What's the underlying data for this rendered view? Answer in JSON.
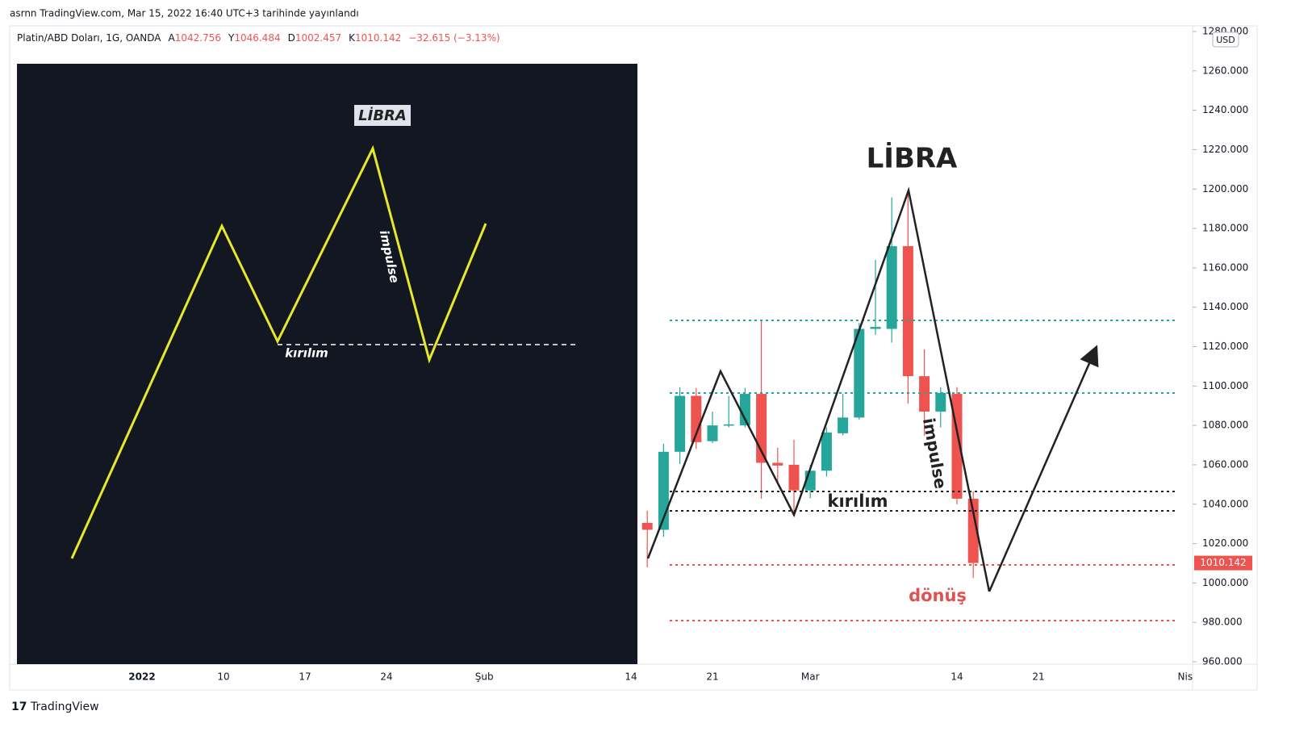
{
  "caption": "asrnn TradingView.com, Mar 15, 2022 16:40 UTC+3 tarihinde yayınlandı",
  "footer": "TradingView",
  "inset": {
    "title": "LİBRA",
    "impulse": "impulse",
    "breakout": "kırılım"
  },
  "annotations": {
    "title": "LİBRA",
    "impulse": "impulse",
    "breakout": "kırılım",
    "reversal": "dönüş"
  },
  "chart_data": {
    "type": "candlestick",
    "symbol": "Platin/ABD Doları, 1G, OANDA",
    "ohlc_labels": [
      {
        "key": "A",
        "text": "1042.756"
      },
      {
        "key": "Y",
        "text": "1046.484"
      },
      {
        "key": "D",
        "text": "1002.457"
      },
      {
        "key": "K",
        "text": "1010.142"
      }
    ],
    "change": "−32.615 (−3.13%)",
    "currency": "USD",
    "up_color": "#26a69a",
    "down_color": "#ef5350",
    "categories": [
      "2022",
      null,
      null,
      null,
      null,
      "10",
      null,
      null,
      null,
      null,
      "17",
      null,
      null,
      null,
      null,
      "24",
      null,
      null,
      null,
      null,
      null,
      "Şub",
      null,
      null,
      null,
      null,
      null,
      null,
      null,
      null,
      "14",
      null,
      null,
      null,
      null,
      "21",
      null,
      null,
      null,
      null,
      null,
      "Mar",
      null,
      null,
      null,
      null,
      null,
      null,
      null,
      null,
      "14",
      null,
      null,
      null,
      null,
      "21",
      null,
      null,
      null,
      null,
      null,
      null,
      null,
      null,
      "Nis"
    ],
    "open": [
      null,
      null,
      null,
      null,
      null,
      null,
      null,
      null,
      null,
      null,
      null,
      null,
      null,
      null,
      null,
      null,
      null,
      null,
      null,
      null,
      null,
      null,
      null,
      null,
      null,
      null,
      null,
      null,
      null,
      null,
      null,
      1030.5,
      1027,
      1066.6,
      1095,
      1072,
      1080,
      1080,
      1096,
      1061,
      1060,
      1047,
      1057,
      1076,
      1084,
      1129,
      1129,
      1171,
      1105,
      1087,
      1096,
      1042.756,
      null,
      null,
      null,
      null,
      null,
      null,
      null,
      null,
      null,
      null,
      null,
      null,
      null
    ],
    "high": [
      null,
      null,
      null,
      null,
      null,
      null,
      null,
      null,
      null,
      null,
      null,
      null,
      null,
      null,
      null,
      null,
      null,
      null,
      null,
      null,
      null,
      null,
      null,
      null,
      null,
      null,
      null,
      null,
      null,
      null,
      null,
      1036.7,
      1070.7,
      1099.4,
      1099,
      1087,
      1095,
      1099,
      1133.4,
      1068.7,
      1072.7,
      1060,
      1079,
      1096,
      1132,
      1164,
      1195.7,
      1197.7,
      1118.6,
      1099.4,
      1099.4,
      1046.484,
      null,
      null,
      null,
      null,
      null,
      null,
      null,
      null,
      null,
      null,
      null,
      null,
      null
    ],
    "low": [
      null,
      null,
      null,
      null,
      null,
      null,
      null,
      null,
      null,
      null,
      null,
      null,
      null,
      null,
      null,
      null,
      null,
      null,
      null,
      null,
      null,
      null,
      null,
      null,
      null,
      null,
      null,
      null,
      null,
      null,
      null,
      1008,
      1023.5,
      1060.4,
      1068,
      1071,
      1079,
      1079,
      1042.8,
      1050,
      1034.6,
      1043,
      1054,
      1075,
      1083,
      1126,
      1122,
      1091,
      1074.8,
      1079,
      1040,
      1002.457,
      null,
      null,
      null,
      null,
      null,
      null,
      null,
      null,
      null,
      null,
      null,
      null,
      null
    ],
    "close": [
      null,
      null,
      null,
      null,
      null,
      null,
      null,
      null,
      null,
      null,
      null,
      null,
      null,
      null,
      null,
      null,
      null,
      null,
      null,
      null,
      null,
      null,
      null,
      null,
      null,
      null,
      null,
      null,
      null,
      null,
      null,
      1027,
      1066.6,
      1095,
      1071.5,
      1080,
      1080.5,
      1096,
      1061,
      1059.6,
      1047,
      1057,
      1076.4,
      1084,
      1129,
      1130,
      1171,
      1105,
      1087,
      1096.5,
      1042.8,
      1010.142,
      null,
      null,
      null,
      null,
      null,
      null,
      null,
      null,
      null,
      null,
      null,
      null,
      null
    ],
    "last_price": 1010.142,
    "ylim": [
      960,
      1280
    ],
    "yticks": [
      {
        "value": 960,
        "label": "960.000"
      },
      {
        "value": 980,
        "label": "980.000"
      },
      {
        "value": 1000,
        "label": "1000.000"
      },
      {
        "value": 1020,
        "label": "1020.000"
      },
      {
        "value": 1040,
        "label": "1040.000"
      },
      {
        "value": 1060,
        "label": "1060.000"
      },
      {
        "value": 1080,
        "label": "1080.000"
      },
      {
        "value": 1100,
        "label": "1100.000"
      },
      {
        "value": 1120,
        "label": "1120.000"
      },
      {
        "value": 1140,
        "label": "1140.000"
      },
      {
        "value": 1160,
        "label": "1160.000"
      },
      {
        "value": 1180,
        "label": "1180.000"
      },
      {
        "value": 1200,
        "label": "1200.000"
      },
      {
        "value": 1220,
        "label": "1220.000"
      },
      {
        "value": 1240,
        "label": "1240.000"
      },
      {
        "value": 1260,
        "label": "1260.000"
      },
      {
        "value": 1280,
        "label": "1280.000"
      }
    ]
  }
}
